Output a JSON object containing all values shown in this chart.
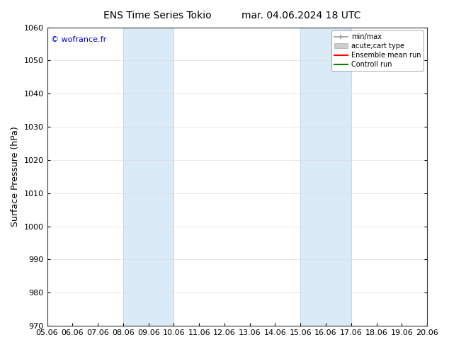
{
  "title_left": "ENS Time Series Tokio",
  "title_right": "mar. 04.06.2024 18 UTC",
  "ylabel": "Surface Pressure (hPa)",
  "xlabel": "",
  "ylim": [
    970,
    1060
  ],
  "yticks": [
    970,
    980,
    990,
    1000,
    1010,
    1020,
    1030,
    1040,
    1050,
    1060
  ],
  "xtick_labels": [
    "05.06",
    "06.06",
    "07.06",
    "08.06",
    "09.06",
    "10.06",
    "11.06",
    "12.06",
    "13.06",
    "14.06",
    "15.06",
    "16.06",
    "17.06",
    "18.06",
    "19.06",
    "20.06"
  ],
  "xtick_values": [
    0,
    1,
    2,
    3,
    4,
    5,
    6,
    7,
    8,
    9,
    10,
    11,
    12,
    13,
    14,
    15
  ],
  "shaded_regions": [
    {
      "x_start": 3,
      "x_end": 5
    },
    {
      "x_start": 10,
      "x_end": 12
    }
  ],
  "shaded_color": "#daeaf7",
  "shaded_edge_color": "#b8d4eb",
  "background_color": "#ffffff",
  "grid_color": "#dddddd",
  "watermark": "© wofrance.fr",
  "watermark_color": "#0000cc",
  "legend_labels": [
    "min/max",
    "acute;cart type",
    "Ensemble mean run",
    "Controll run"
  ],
  "legend_colors": [
    "#999999",
    "#cccccc",
    "#ff0000",
    "#008800"
  ],
  "tick_fontsize": 8,
  "ylabel_fontsize": 9,
  "title_fontsize": 10,
  "watermark_fontsize": 8
}
